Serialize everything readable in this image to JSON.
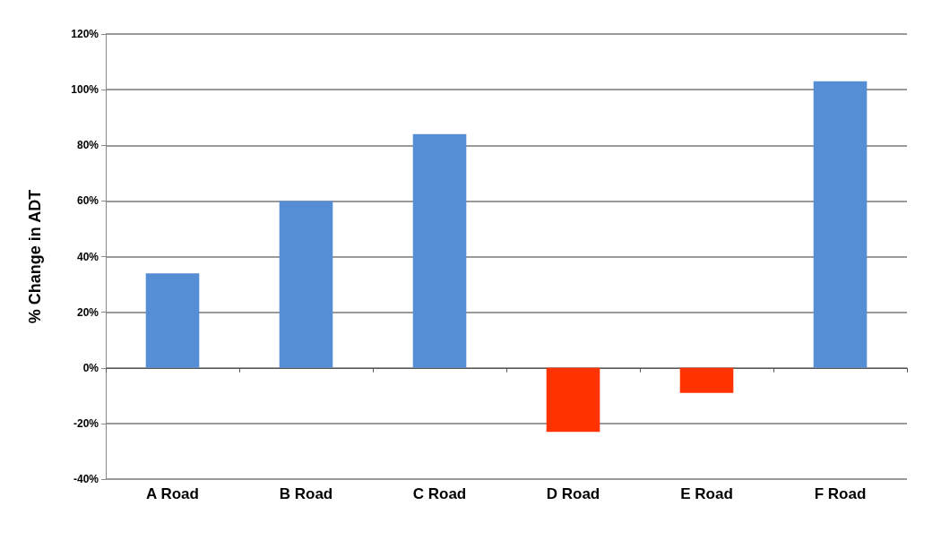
{
  "chart_data": {
    "type": "bar",
    "ylabel": "% Change in ADT",
    "categories": [
      "A Road",
      "B Road",
      "C Road",
      "D Road",
      "E Road",
      "F Road"
    ],
    "values": [
      34,
      60,
      84,
      -23,
      -9,
      103
    ],
    "colors": [
      "#558ed5",
      "#558ed5",
      "#558ed5",
      "#ff3300",
      "#ff3300",
      "#558ed5"
    ],
    "ylim": [
      -40,
      120
    ],
    "yticks": [
      {
        "value": -40,
        "label": "-40%"
      },
      {
        "value": -20,
        "label": "-20%"
      },
      {
        "value": 0,
        "label": "0%"
      },
      {
        "value": 20,
        "label": "20%"
      },
      {
        "value": 40,
        "label": "40%"
      },
      {
        "value": 60,
        "label": "60%"
      },
      {
        "value": 80,
        "label": "80%"
      },
      {
        "value": 100,
        "label": "100%"
      },
      {
        "value": 120,
        "label": "120%"
      }
    ],
    "grid": true
  }
}
